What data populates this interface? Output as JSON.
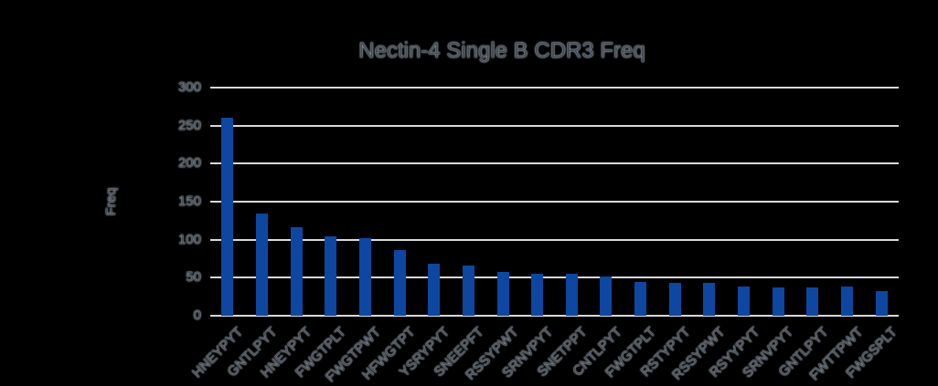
{
  "chart_data": {
    "type": "bar",
    "title": "Nectin-4 Single B CDR3 Freq",
    "xlabel": "",
    "ylabel": "Freq",
    "categories": [
      "HNEYPYT",
      "GNTLPYT",
      "HNEYPYT",
      "FWGTPLT",
      "FWGTPWT",
      "HFWGTPT",
      "YSRYPYT",
      "SNEEPFT",
      "RSSYPWT",
      "SRNVPYT",
      "SNETPPT",
      "CNTLPYT",
      "FWGTPLT",
      "RSTYPYT",
      "RSSYPWT",
      "RSYYPYT",
      "SRNVPYT",
      "GNTLPYT",
      "FWTTPWT",
      "FWGSPLT"
    ],
    "values": [
      260,
      135,
      117,
      105,
      102,
      87,
      68,
      66,
      58,
      55,
      55,
      52,
      45,
      43,
      43,
      39,
      37,
      37,
      38,
      32
    ],
    "ylim": [
      0,
      300
    ],
    "yticks": [
      0,
      50,
      100,
      150,
      200,
      250,
      300
    ],
    "grid": true,
    "legend_position": "none",
    "bar_color": "#0d47a1",
    "gridline_color": "#d9d9d9",
    "background_color": "#000000",
    "text_color": "#454d57"
  }
}
